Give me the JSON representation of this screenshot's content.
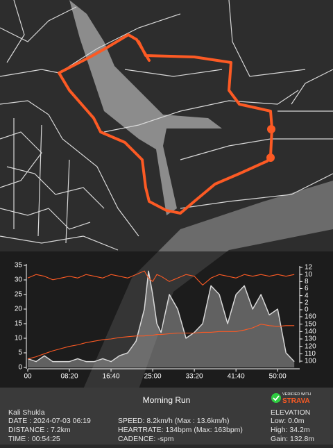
{
  "chart_data": {
    "type": "line",
    "x": [
      0,
      100,
      200,
      300,
      400,
      500,
      600,
      700,
      800,
      900,
      1000,
      1100,
      1200,
      1300,
      1400,
      1450,
      1500,
      1550,
      1600,
      1700,
      1800,
      1900,
      2000,
      2100,
      2200,
      2300,
      2400,
      2500,
      2600,
      2700,
      2800,
      2900,
      3000,
      3100,
      3200
    ],
    "xlim": [
      0,
      3265
    ],
    "xticks": [
      {
        "value": 0,
        "label": "00"
      },
      {
        "value": 500,
        "label": "08:20"
      },
      {
        "value": 1000,
        "label": "16:40"
      },
      {
        "value": 1500,
        "label": "25:00"
      },
      {
        "value": 2000,
        "label": "33:20"
      },
      {
        "value": 2500,
        "label": "41:40"
      },
      {
        "value": 3000,
        "label": "50:00"
      }
    ],
    "ylim": [
      0,
      35
    ],
    "yticks": [
      0,
      5,
      10,
      15,
      20,
      25,
      30,
      35
    ],
    "y2lim": [
      0,
      12
    ],
    "y2ticks": [
      0,
      2,
      4,
      6,
      8,
      10,
      12
    ],
    "y3lim": [
      100,
      160
    ],
    "y3ticks": [
      100,
      110,
      120,
      130,
      140,
      150,
      160
    ],
    "series": [
      {
        "name": "Elevation",
        "color": "#d8d8d8",
        "axis": "y",
        "values": [
          3,
          2,
          4,
          2,
          2,
          2,
          3,
          2,
          2,
          3,
          2,
          4,
          5,
          9,
          20,
          33,
          25,
          15,
          12,
          25,
          20,
          10,
          12,
          15,
          28,
          25,
          15,
          25,
          28,
          20,
          25,
          18,
          20,
          5,
          2
        ]
      },
      {
        "name": "Speed",
        "color": "#fc5a24",
        "axis": "y2",
        "values": [
          9,
          10,
          9.5,
          8.5,
          9,
          9.5,
          9,
          10,
          9.5,
          9,
          10,
          9.5,
          9,
          10,
          11,
          9,
          8,
          10,
          9.5,
          8,
          9,
          10,
          9.5,
          7,
          9,
          10,
          9.5,
          9,
          10,
          9.5,
          10,
          9.5,
          10,
          9.5,
          10
        ]
      },
      {
        "name": "Heartrate",
        "color": "#fc5a24",
        "axis": "y3",
        "values": [
          103,
          106,
          110,
          114,
          117,
          120,
          122,
          125,
          127,
          129,
          130,
          132,
          133,
          134,
          134,
          135,
          135,
          136,
          136,
          137,
          138,
          138,
          138,
          139,
          139,
          140,
          140,
          140,
          142,
          145,
          150,
          148,
          147,
          148,
          148
        ]
      }
    ]
  },
  "footer": {
    "title": "Morning Run",
    "athlete": "Kali Shukla",
    "date": "DATE : 2024-07-03 06:19",
    "distance": "DISTANCE : 7.2km",
    "time": "TIME : 00:54:25",
    "speed": "SPEED: 8.2km/h (Max : 13.6km/h)",
    "heartrate": "HEARTRATE: 134bpm (Max: 163bpm)",
    "cadence": "CADENCE: -spm",
    "elevation": "ELEVATION",
    "low": "Low: 0.0m",
    "high": "High: 34.2m",
    "gain": "Gain: 132.8m",
    "badge_top": "VERIFIED WITH",
    "badge_brand": "STRAVA"
  }
}
